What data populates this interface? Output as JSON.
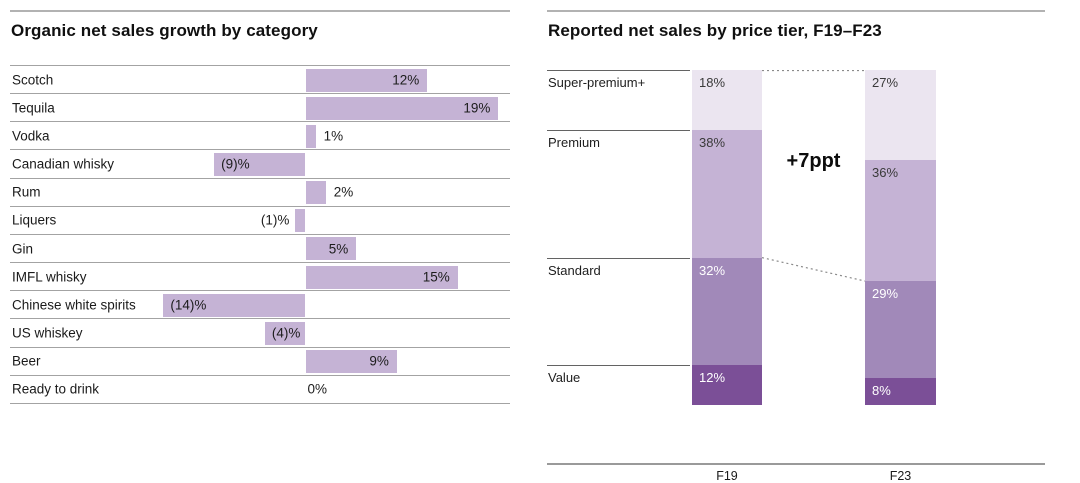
{
  "page": {
    "background": "#ffffff"
  },
  "colors": {
    "bar_light_purple": "#c5b3d5",
    "tier_super_premium": "#ebe5f0",
    "tier_premium": "#c5b3d5",
    "tier_standard": "#a189b9",
    "tier_value": "#7b4f97",
    "row_separator": "#a3a3a3",
    "tier_boundary_line": "#636363",
    "axis_baseline": "#9a9a9a",
    "dotted_connector": "#8a8a8a",
    "title_text": "#101010",
    "label_text": "#1a1a1a"
  },
  "chart_data": [
    {
      "type": "bar",
      "orientation": "horizontal",
      "title": "Organic net sales growth by category",
      "categories": [
        "Scotch",
        "Tequila",
        "Vodka",
        "Canadian whisky",
        "Rum",
        "Liquers",
        "Gin",
        "IMFL whisky",
        "Chinese white spirits",
        "US whiskey",
        "Beer",
        "Ready to drink"
      ],
      "values": [
        12,
        19,
        1,
        -9,
        2,
        -1,
        5,
        15,
        -14,
        -4,
        9,
        0
      ],
      "value_labels": [
        "12%",
        "19%",
        "1%",
        "(9)%",
        "2%",
        "(1)%",
        "5%",
        "15%",
        "(14)%",
        "(4)%",
        "9%",
        "0%"
      ],
      "bar_color": "#c5b3d5",
      "xlim": [
        -29,
        20
      ],
      "xlabel": "",
      "ylabel": "",
      "grid": "row-separator-lines",
      "legend": "none",
      "value_format": "negatives-in-parentheses"
    },
    {
      "type": "bar",
      "subtype": "stacked-column-100pct",
      "title": "Reported net sales by price tier, F19–F23",
      "categories": [
        "F19",
        "F23"
      ],
      "series": [
        {
          "name": "Super-premium+",
          "values": [
            18,
            27
          ],
          "labels": [
            "18%",
            "27%"
          ],
          "color": "#ebe5f0",
          "label_color": "#3a3a3a"
        },
        {
          "name": "Premium",
          "values": [
            38,
            36
          ],
          "labels": [
            "38%",
            "36%"
          ],
          "color": "#c5b3d5",
          "label_color": "#3a3a3a"
        },
        {
          "name": "Standard",
          "values": [
            32,
            29
          ],
          "labels": [
            "32%",
            "29%"
          ],
          "color": "#a189b9",
          "label_color": "#ffffff"
        },
        {
          "name": "Value",
          "values": [
            12,
            8
          ],
          "labels": [
            "12%",
            "8%"
          ],
          "color": "#7b4f97",
          "label_color": "#ffffff"
        }
      ],
      "annotation": "+7ppt",
      "ylim": [
        0,
        100
      ],
      "legend": "tier-labels-left-of-first-column",
      "connectors": "dotted-lines-between-columns"
    }
  ]
}
